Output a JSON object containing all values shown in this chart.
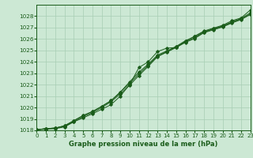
{
  "xlabel": "Graphe pression niveau de la mer (hPa)",
  "background_color": "#cce8d4",
  "grid_color": "#a8ceb4",
  "line_color": "#1a5c1a",
  "ylim": [
    1018,
    1029
  ],
  "xlim": [
    0,
    23
  ],
  "yticks": [
    1018,
    1019,
    1020,
    1021,
    1022,
    1023,
    1024,
    1025,
    1026,
    1027,
    1028
  ],
  "xticks": [
    0,
    1,
    2,
    3,
    4,
    5,
    6,
    7,
    8,
    9,
    10,
    11,
    12,
    13,
    14,
    15,
    16,
    17,
    18,
    19,
    20,
    21,
    22,
    23
  ],
  "s1_y": [
    1018.05,
    1018.15,
    1018.2,
    1018.35,
    1018.75,
    1019.1,
    1019.45,
    1019.85,
    1020.25,
    1021.0,
    1022.0,
    1023.5,
    1024.0,
    1024.9,
    1025.2,
    1025.25,
    1025.8,
    1026.25,
    1026.7,
    1026.95,
    1027.2,
    1027.6,
    1027.85,
    1028.55
  ],
  "s2_y": [
    1018.05,
    1018.15,
    1018.2,
    1018.4,
    1018.85,
    1019.3,
    1019.65,
    1020.1,
    1020.6,
    1021.35,
    1022.25,
    1023.1,
    1023.8,
    1024.6,
    1024.95,
    1025.35,
    1025.85,
    1026.2,
    1026.65,
    1026.9,
    1027.15,
    1027.5,
    1027.8,
    1028.3
  ],
  "s3_y": [
    1018.05,
    1018.15,
    1018.2,
    1018.4,
    1018.85,
    1019.3,
    1019.65,
    1020.1,
    1020.6,
    1021.35,
    1022.1,
    1022.95,
    1023.7,
    1024.5,
    1024.9,
    1025.3,
    1025.75,
    1026.1,
    1026.6,
    1026.85,
    1027.1,
    1027.45,
    1027.75,
    1028.2
  ],
  "s4_y": [
    1018.05,
    1018.1,
    1018.15,
    1018.3,
    1018.75,
    1019.2,
    1019.55,
    1020.0,
    1020.5,
    1021.2,
    1021.95,
    1022.8,
    1023.6,
    1024.45,
    1024.85,
    1025.25,
    1025.7,
    1026.05,
    1026.55,
    1026.8,
    1027.05,
    1027.4,
    1027.7,
    1028.15
  ]
}
